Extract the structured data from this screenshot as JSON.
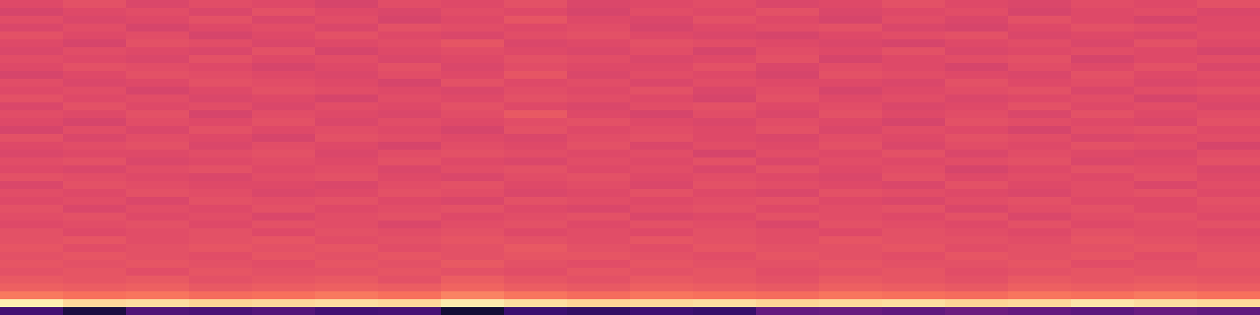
{
  "chart_data": {
    "type": "heatmap",
    "color": "magma",
    "tick_labels": false,
    "zlim": [
      0,
      1
    ],
    "values": [
      [
        0.6,
        0.62,
        0.59,
        0.61,
        0.6,
        0.58,
        0.61,
        0.6,
        0.62,
        0.59,
        0.6,
        0.61,
        0.59,
        0.6,
        0.62,
        0.6,
        0.59,
        0.61,
        0.6,
        0.62
      ],
      [
        0.58,
        0.6,
        0.61,
        0.59,
        0.62,
        0.6,
        0.59,
        0.61,
        0.6,
        0.58,
        0.61,
        0.6,
        0.62,
        0.59,
        0.6,
        0.61,
        0.58,
        0.6,
        0.61,
        0.59
      ],
      [
        0.61,
        0.59,
        0.6,
        0.62,
        0.59,
        0.61,
        0.58,
        0.6,
        0.63,
        0.6,
        0.59,
        0.62,
        0.6,
        0.58,
        0.61,
        0.59,
        0.62,
        0.6,
        0.58,
        0.6
      ],
      [
        0.59,
        0.61,
        0.58,
        0.6,
        0.61,
        0.59,
        0.62,
        0.61,
        0.6,
        0.61,
        0.58,
        0.6,
        0.61,
        0.62,
        0.59,
        0.58,
        0.6,
        0.62,
        0.61,
        0.6
      ],
      [
        0.62,
        0.6,
        0.61,
        0.58,
        0.6,
        0.62,
        0.6,
        0.59,
        0.61,
        0.62,
        0.6,
        0.59,
        0.58,
        0.6,
        0.61,
        0.62,
        0.59,
        0.6,
        0.59,
        0.61
      ],
      [
        0.6,
        0.58,
        0.62,
        0.61,
        0.59,
        0.6,
        0.61,
        0.63,
        0.59,
        0.6,
        0.62,
        0.61,
        0.6,
        0.59,
        0.58,
        0.6,
        0.61,
        0.59,
        0.62,
        0.6
      ],
      [
        0.59,
        0.61,
        0.6,
        0.59,
        0.62,
        0.58,
        0.6,
        0.61,
        0.6,
        0.59,
        0.61,
        0.58,
        0.61,
        0.6,
        0.62,
        0.59,
        0.6,
        0.61,
        0.6,
        0.58
      ],
      [
        0.61,
        0.6,
        0.59,
        0.62,
        0.6,
        0.61,
        0.59,
        0.6,
        0.62,
        0.61,
        0.59,
        0.6,
        0.62,
        0.58,
        0.6,
        0.61,
        0.62,
        0.58,
        0.6,
        0.61
      ],
      [
        0.6,
        0.62,
        0.61,
        0.6,
        0.58,
        0.6,
        0.62,
        0.59,
        0.61,
        0.6,
        0.6,
        0.62,
        0.59,
        0.61,
        0.6,
        0.58,
        0.61,
        0.6,
        0.62,
        0.59
      ],
      [
        0.58,
        0.6,
        0.62,
        0.61,
        0.6,
        0.59,
        0.61,
        0.6,
        0.63,
        0.59,
        0.61,
        0.6,
        0.58,
        0.62,
        0.61,
        0.6,
        0.59,
        0.62,
        0.6,
        0.61
      ],
      [
        0.61,
        0.59,
        0.6,
        0.62,
        0.61,
        0.6,
        0.58,
        0.62,
        0.6,
        0.61,
        0.59,
        0.61,
        0.6,
        0.6,
        0.59,
        0.62,
        0.6,
        0.61,
        0.59,
        0.6
      ],
      [
        0.6,
        0.61,
        0.58,
        0.6,
        0.62,
        0.61,
        0.6,
        0.59,
        0.61,
        0.6,
        0.62,
        0.59,
        0.61,
        0.58,
        0.6,
        0.61,
        0.62,
        0.59,
        0.61,
        0.62
      ],
      [
        0.62,
        0.6,
        0.61,
        0.59,
        0.6,
        0.58,
        0.61,
        0.6,
        0.62,
        0.61,
        0.6,
        0.58,
        0.62,
        0.6,
        0.61,
        0.59,
        0.6,
        0.61,
        0.58,
        0.6
      ],
      [
        0.59,
        0.62,
        0.6,
        0.61,
        0.59,
        0.61,
        0.6,
        0.62,
        0.6,
        0.59,
        0.61,
        0.62,
        0.6,
        0.61,
        0.59,
        0.6,
        0.62,
        0.6,
        0.61,
        0.59
      ],
      [
        0.61,
        0.6,
        0.62,
        0.58,
        0.61,
        0.6,
        0.59,
        0.61,
        0.64,
        0.6,
        0.58,
        0.61,
        0.59,
        0.62,
        0.6,
        0.61,
        0.59,
        0.62,
        0.6,
        0.61
      ],
      [
        0.6,
        0.58,
        0.61,
        0.6,
        0.62,
        0.59,
        0.61,
        0.6,
        0.61,
        0.62,
        0.6,
        0.59,
        0.61,
        0.6,
        0.58,
        0.62,
        0.61,
        0.6,
        0.59,
        0.62
      ],
      [
        0.58,
        0.61,
        0.59,
        0.62,
        0.6,
        0.61,
        0.6,
        0.58,
        0.62,
        0.6,
        0.61,
        0.6,
        0.62,
        0.59,
        0.61,
        0.6,
        0.58,
        0.61,
        0.62,
        0.6
      ],
      [
        0.62,
        0.59,
        0.61,
        0.6,
        0.58,
        0.62,
        0.61,
        0.6,
        0.59,
        0.61,
        0.62,
        0.6,
        0.59,
        0.61,
        0.6,
        0.62,
        0.61,
        0.59,
        0.6,
        0.61
      ],
      [
        0.6,
        0.61,
        0.62,
        0.59,
        0.61,
        0.6,
        0.58,
        0.61,
        0.6,
        0.62,
        0.59,
        0.61,
        0.6,
        0.62,
        0.59,
        0.61,
        0.6,
        0.62,
        0.61,
        0.58
      ],
      [
        0.59,
        0.6,
        0.6,
        0.61,
        0.62,
        0.59,
        0.61,
        0.62,
        0.61,
        0.6,
        0.61,
        0.58,
        0.61,
        0.6,
        0.62,
        0.59,
        0.61,
        0.6,
        0.59,
        0.61
      ],
      [
        0.61,
        0.62,
        0.59,
        0.6,
        0.61,
        0.6,
        0.62,
        0.6,
        0.59,
        0.61,
        0.6,
        0.62,
        0.59,
        0.61,
        0.6,
        0.61,
        0.62,
        0.59,
        0.6,
        0.62
      ],
      [
        0.6,
        0.59,
        0.61,
        0.62,
        0.6,
        0.61,
        0.59,
        0.61,
        0.62,
        0.6,
        0.61,
        0.59,
        0.62,
        0.6,
        0.61,
        0.58,
        0.6,
        0.62,
        0.61,
        0.59
      ],
      [
        0.62,
        0.61,
        0.6,
        0.59,
        0.61,
        0.62,
        0.6,
        0.59,
        0.61,
        0.62,
        0.6,
        0.61,
        0.6,
        0.59,
        0.62,
        0.6,
        0.61,
        0.6,
        0.62,
        0.6
      ],
      [
        0.59,
        0.62,
        0.61,
        0.6,
        0.6,
        0.59,
        0.61,
        0.62,
        0.6,
        0.61,
        0.59,
        0.62,
        0.61,
        0.6,
        0.59,
        0.62,
        0.6,
        0.61,
        0.59,
        0.61
      ],
      [
        0.61,
        0.6,
        0.62,
        0.61,
        0.59,
        0.6,
        0.62,
        0.61,
        0.59,
        0.6,
        0.62,
        0.6,
        0.59,
        0.62,
        0.61,
        0.6,
        0.59,
        0.61,
        0.62,
        0.6
      ],
      [
        0.6,
        0.61,
        0.59,
        0.62,
        0.61,
        0.62,
        0.6,
        0.59,
        0.62,
        0.61,
        0.6,
        0.61,
        0.62,
        0.6,
        0.59,
        0.61,
        0.62,
        0.6,
        0.6,
        0.62
      ],
      [
        0.62,
        0.59,
        0.61,
        0.6,
        0.62,
        0.6,
        0.61,
        0.62,
        0.6,
        0.59,
        0.61,
        0.62,
        0.6,
        0.61,
        0.62,
        0.59,
        0.61,
        0.62,
        0.6,
        0.61
      ],
      [
        0.61,
        0.62,
        0.6,
        0.61,
        0.59,
        0.61,
        0.62,
        0.6,
        0.61,
        0.62,
        0.59,
        0.6,
        0.62,
        0.61,
        0.6,
        0.62,
        0.59,
        0.61,
        0.62,
        0.6
      ],
      [
        0.6,
        0.61,
        0.62,
        0.6,
        0.62,
        0.61,
        0.59,
        0.61,
        0.62,
        0.6,
        0.62,
        0.61,
        0.59,
        0.62,
        0.61,
        0.6,
        0.62,
        0.6,
        0.61,
        0.62
      ],
      [
        0.62,
        0.6,
        0.61,
        0.62,
        0.6,
        0.62,
        0.61,
        0.62,
        0.6,
        0.61,
        0.6,
        0.62,
        0.61,
        0.6,
        0.62,
        0.61,
        0.6,
        0.62,
        0.61,
        0.6
      ],
      [
        0.62,
        0.63,
        0.61,
        0.62,
        0.63,
        0.61,
        0.62,
        0.63,
        0.62,
        0.61,
        0.63,
        0.62,
        0.61,
        0.63,
        0.62,
        0.62,
        0.61,
        0.63,
        0.62,
        0.61
      ],
      [
        0.63,
        0.61,
        0.62,
        0.63,
        0.62,
        0.63,
        0.61,
        0.62,
        0.64,
        0.62,
        0.61,
        0.63,
        0.62,
        0.62,
        0.63,
        0.61,
        0.62,
        0.62,
        0.63,
        0.62
      ],
      [
        0.62,
        0.63,
        0.62,
        0.61,
        0.63,
        0.62,
        0.63,
        0.62,
        0.63,
        0.63,
        0.62,
        0.61,
        0.63,
        0.62,
        0.61,
        0.63,
        0.62,
        0.63,
        0.61,
        0.63
      ],
      [
        0.63,
        0.62,
        0.63,
        0.62,
        0.61,
        0.63,
        0.62,
        0.64,
        0.62,
        0.61,
        0.63,
        0.62,
        0.62,
        0.63,
        0.62,
        0.62,
        0.63,
        0.61,
        0.62,
        0.63
      ],
      [
        0.62,
        0.63,
        0.61,
        0.63,
        0.62,
        0.62,
        0.63,
        0.62,
        0.61,
        0.63,
        0.62,
        0.63,
        0.61,
        0.62,
        0.63,
        0.61,
        0.62,
        0.63,
        0.62,
        0.62
      ],
      [
        0.64,
        0.63,
        0.64,
        0.62,
        0.63,
        0.64,
        0.62,
        0.65,
        0.63,
        0.62,
        0.64,
        0.63,
        0.62,
        0.64,
        0.63,
        0.62,
        0.64,
        0.63,
        0.64,
        0.63
      ],
      [
        0.66,
        0.65,
        0.66,
        0.64,
        0.65,
        0.66,
        0.65,
        0.67,
        0.65,
        0.64,
        0.66,
        0.65,
        0.64,
        0.66,
        0.65,
        0.64,
        0.66,
        0.65,
        0.66,
        0.65
      ],
      [
        0.72,
        0.7,
        0.71,
        0.69,
        0.7,
        0.72,
        0.7,
        0.74,
        0.71,
        0.69,
        0.71,
        0.7,
        0.69,
        0.71,
        0.7,
        0.69,
        0.71,
        0.7,
        0.72,
        0.7
      ],
      [
        0.97,
        0.92,
        0.93,
        0.91,
        0.92,
        0.93,
        0.92,
        0.96,
        0.93,
        0.91,
        0.92,
        0.93,
        0.91,
        0.92,
        0.93,
        0.91,
        0.92,
        0.95,
        0.93,
        0.92
      ],
      [
        0.22,
        0.12,
        0.25,
        0.24,
        0.26,
        0.22,
        0.23,
        0.1,
        0.2,
        0.18,
        0.21,
        0.19,
        0.3,
        0.31,
        0.29,
        0.32,
        0.3,
        0.28,
        0.31,
        0.29
      ]
    ]
  }
}
